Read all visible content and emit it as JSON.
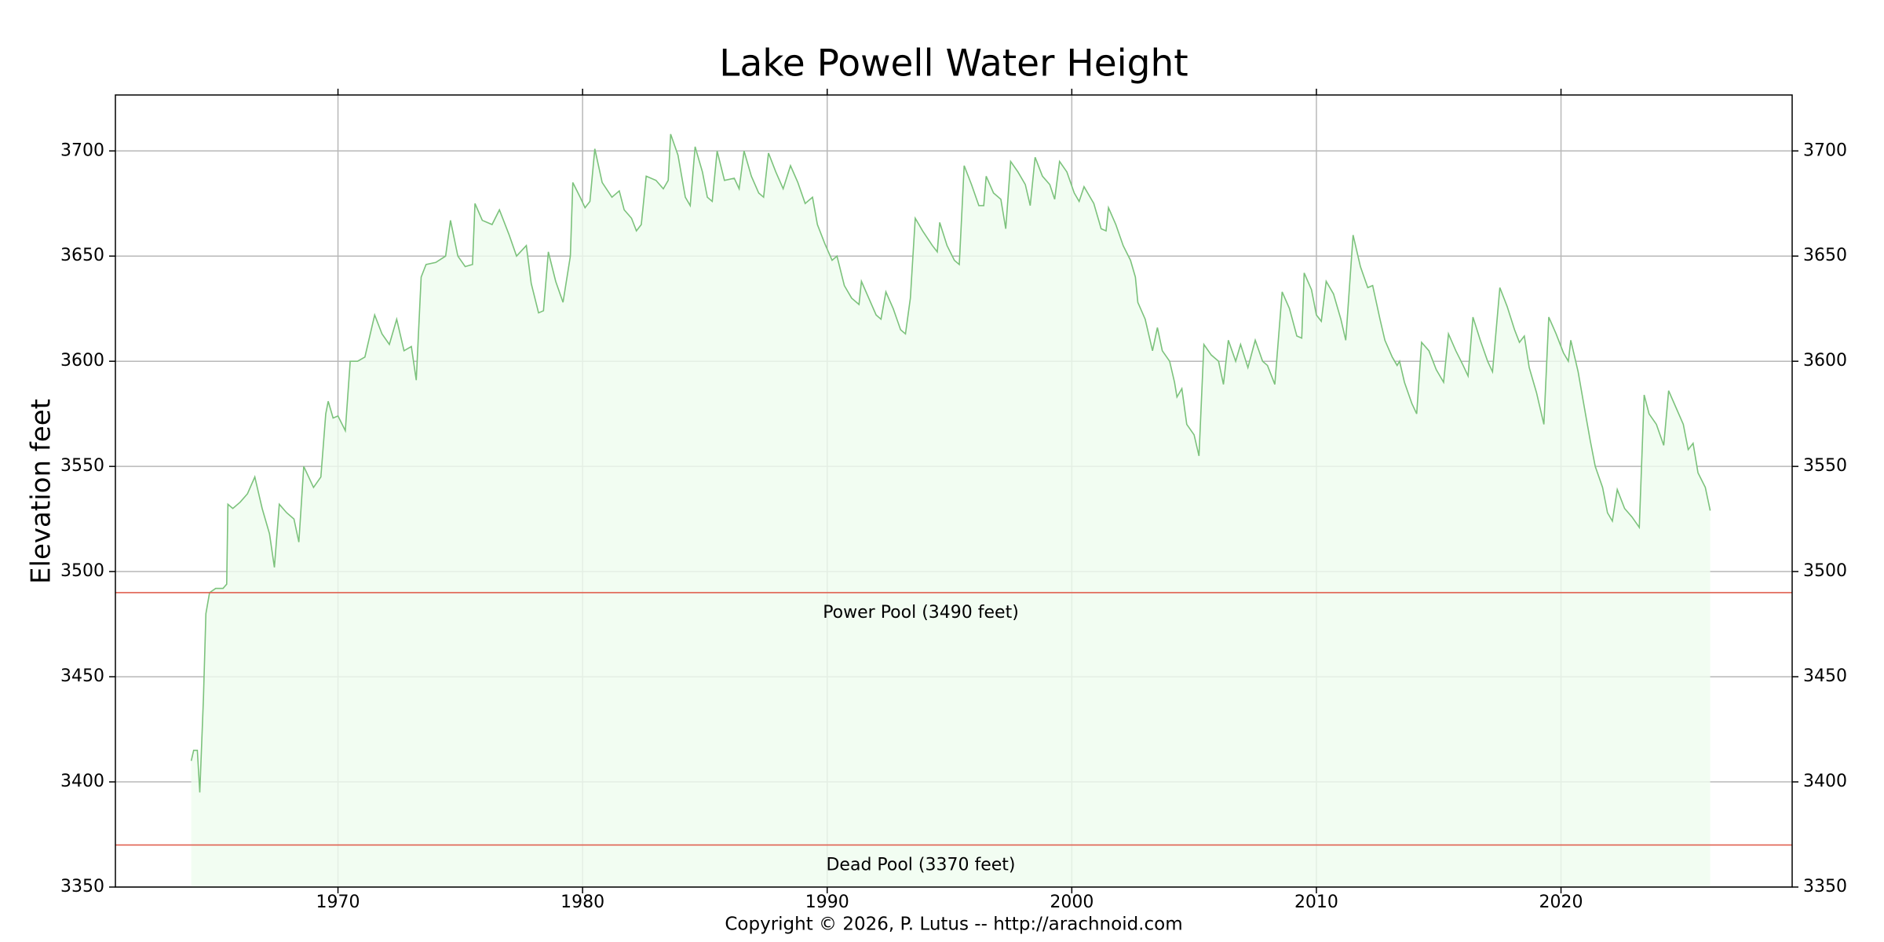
{
  "chart_data": {
    "type": "line",
    "title": "Lake Powell Water Height",
    "y_label": "Elevation feet",
    "footer": "Copyright © 2026, P. Lutus -- http://arachnoid.com",
    "color": "#7cc27c",
    "fill_color": "#effcef",
    "grid": true,
    "xlim": [
      1960.9,
      2029.45
    ],
    "xticks": [
      1970,
      1980,
      1990,
      2000,
      2010,
      2020
    ],
    "ylim": [
      3350,
      3726.6
    ],
    "yticks": [
      3350,
      3400,
      3450,
      3500,
      3550,
      3600,
      3650,
      3700
    ],
    "hlines": [
      {
        "value": 3490,
        "label": "Power Pool (3490 feet)",
        "color": "#e06050"
      },
      {
        "value": 3370,
        "label": "Dead Pool (3370 feet)",
        "color": "#e06050"
      }
    ],
    "x": [
      1964.0,
      1964.1,
      1964.25,
      1964.35,
      1964.5,
      1964.6,
      1964.75,
      1965.0,
      1965.3,
      1965.45,
      1965.5,
      1965.7,
      1966.0,
      1966.3,
      1966.6,
      1966.9,
      1967.2,
      1967.4,
      1967.6,
      1967.9,
      1968.2,
      1968.4,
      1968.6,
      1969.0,
      1969.3,
      1969.5,
      1969.6,
      1969.8,
      1970.0,
      1970.3,
      1970.5,
      1970.8,
      1971.1,
      1971.5,
      1971.8,
      1972.1,
      1972.4,
      1972.7,
      1973.0,
      1973.2,
      1973.4,
      1973.6,
      1974.0,
      1974.4,
      1974.6,
      1974.9,
      1975.2,
      1975.5,
      1975.6,
      1975.9,
      1976.3,
      1976.6,
      1977.0,
      1977.3,
      1977.7,
      1977.9,
      1978.2,
      1978.4,
      1978.6,
      1978.9,
      1979.2,
      1979.5,
      1979.6,
      1979.9,
      1980.1,
      1980.3,
      1980.5,
      1980.8,
      1981.2,
      1981.5,
      1981.7,
      1982.0,
      1982.2,
      1982.4,
      1982.6,
      1983.0,
      1983.3,
      1983.5,
      1983.6,
      1983.9,
      1984.2,
      1984.4,
      1984.6,
      1984.9,
      1985.1,
      1985.3,
      1985.5,
      1985.8,
      1986.2,
      1986.4,
      1986.6,
      1986.9,
      1987.2,
      1987.4,
      1987.6,
      1987.9,
      1988.2,
      1988.5,
      1988.8,
      1989.1,
      1989.4,
      1989.6,
      1989.9,
      1990.2,
      1990.4,
      1990.7,
      1991.0,
      1991.3,
      1991.4,
      1991.7,
      1992.0,
      1992.2,
      1992.4,
      1992.7,
      1993.0,
      1993.2,
      1993.4,
      1993.6,
      1993.9,
      1994.3,
      1994.5,
      1994.6,
      1994.9,
      1995.2,
      1995.4,
      1995.6,
      1995.9,
      1996.2,
      1996.4,
      1996.5,
      1996.8,
      1997.1,
      1997.3,
      1997.5,
      1997.8,
      1998.1,
      1998.3,
      1998.5,
      1998.8,
      1999.1,
      1999.3,
      1999.5,
      1999.8,
      2000.1,
      2000.3,
      2000.5,
      2000.9,
      2001.2,
      2001.4,
      2001.5,
      2001.8,
      2002.1,
      2002.4,
      2002.6,
      2002.7,
      2003.0,
      2003.3,
      2003.5,
      2003.7,
      2004.0,
      2004.2,
      2004.3,
      2004.5,
      2004.7,
      2005.0,
      2005.2,
      2005.4,
      2005.7,
      2006.0,
      2006.2,
      2006.4,
      2006.7,
      2006.9,
      2007.2,
      2007.5,
      2007.8,
      2008.0,
      2008.3,
      2008.6,
      2008.9,
      2009.2,
      2009.4,
      2009.5,
      2009.8,
      2010.0,
      2010.2,
      2010.4,
      2010.7,
      2011.0,
      2011.2,
      2011.5,
      2011.8,
      2012.1,
      2012.3,
      2012.6,
      2012.8,
      2013.1,
      2013.3,
      2013.4,
      2013.6,
      2013.9,
      2014.1,
      2014.3,
      2014.6,
      2014.9,
      2015.2,
      2015.4,
      2015.7,
      2016.0,
      2016.2,
      2016.4,
      2016.7,
      2017.0,
      2017.2,
      2017.5,
      2017.8,
      2018.1,
      2018.3,
      2018.5,
      2018.7,
      2019.0,
      2019.3,
      2019.5,
      2019.8,
      2020.1,
      2020.3,
      2020.4,
      2020.7,
      2021.0,
      2021.2,
      2021.4,
      2021.7,
      2021.9,
      2022.1,
      2022.3,
      2022.6,
      2022.9,
      2023.2,
      2023.4,
      2023.6,
      2023.9,
      2024.2,
      2024.4,
      2024.7,
      2025.0,
      2025.2,
      2025.4,
      2025.6,
      2025.9,
      2026.1
    ],
    "values": [
      3410,
      3415,
      3415,
      3395,
      3440,
      3480,
      3490,
      3492,
      3492,
      3494,
      3532,
      3530,
      3533,
      3537,
      3545,
      3530,
      3518,
      3502,
      3532,
      3528,
      3525,
      3514,
      3550,
      3540,
      3545,
      3575,
      3581,
      3573,
      3574,
      3567,
      3600,
      3600,
      3602,
      3622,
      3613,
      3608,
      3620,
      3605,
      3607,
      3591,
      3640,
      3646,
      3647,
      3650,
      3667,
      3650,
      3645,
      3646,
      3675,
      3667,
      3665,
      3672,
      3660,
      3650,
      3655,
      3637,
      3623,
      3624,
      3652,
      3638,
      3628,
      3650,
      3685,
      3678,
      3673,
      3676,
      3701,
      3685,
      3678,
      3681,
      3672,
      3668,
      3662,
      3665,
      3688,
      3686,
      3682,
      3686,
      3708,
      3698,
      3678,
      3674,
      3702,
      3690,
      3678,
      3676,
      3700,
      3686,
      3687,
      3682,
      3700,
      3688,
      3680,
      3678,
      3699,
      3690,
      3682,
      3693,
      3685,
      3675,
      3678,
      3665,
      3656,
      3648,
      3650,
      3636,
      3630,
      3627,
      3638,
      3630,
      3622,
      3620,
      3633,
      3625,
      3615,
      3613,
      3630,
      3668,
      3662,
      3655,
      3652,
      3666,
      3655,
      3648,
      3646,
      3693,
      3684,
      3674,
      3674,
      3688,
      3680,
      3677,
      3663,
      3695,
      3690,
      3684,
      3674,
      3697,
      3688,
      3684,
      3677,
      3695,
      3690,
      3680,
      3676,
      3683,
      3675,
      3663,
      3662,
      3673,
      3665,
      3655,
      3648,
      3640,
      3628,
      3620,
      3605,
      3616,
      3605,
      3600,
      3590,
      3583,
      3587,
      3570,
      3565,
      3555,
      3608,
      3603,
      3600,
      3589,
      3610,
      3600,
      3608,
      3597,
      3610,
      3600,
      3598,
      3589,
      3633,
      3625,
      3612,
      3611,
      3642,
      3634,
      3622,
      3619,
      3638,
      3632,
      3620,
      3610,
      3660,
      3645,
      3635,
      3636,
      3620,
      3610,
      3602,
      3598,
      3600,
      3590,
      3580,
      3575,
      3609,
      3605,
      3596,
      3590,
      3613,
      3605,
      3598,
      3593,
      3621,
      3610,
      3600,
      3595,
      3635,
      3626,
      3615,
      3609,
      3612,
      3597,
      3585,
      3570,
      3621,
      3613,
      3604,
      3600,
      3610,
      3595,
      3575,
      3562,
      3550,
      3540,
      3528,
      3524,
      3539,
      3530,
      3526,
      3521,
      3584,
      3575,
      3570,
      3560,
      3586,
      3578,
      3570,
      3558,
      3561,
      3547,
      3540,
      3529
    ]
  }
}
